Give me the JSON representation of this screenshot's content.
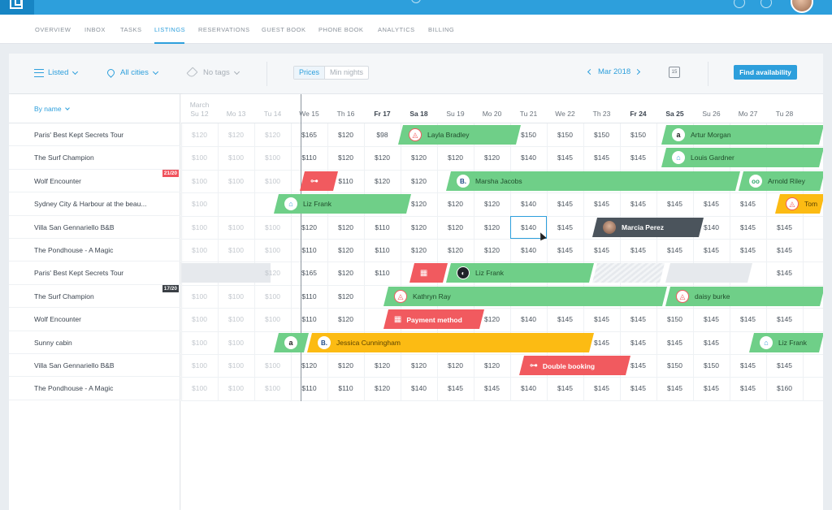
{
  "nav": {
    "tabs": [
      {
        "label": "OVERVIEW"
      },
      {
        "label": "INBOX"
      },
      {
        "label": "TASKS"
      },
      {
        "label": "LISTINGS"
      },
      {
        "label": "RESERVATIONS"
      },
      {
        "label": "GUEST BOOK"
      },
      {
        "label": "PHONE BOOK"
      },
      {
        "label": "ANALYTICS"
      },
      {
        "label": "BILLING"
      }
    ],
    "active": "LISTINGS"
  },
  "toolbar": {
    "listed": "Listed",
    "cities": "All cities",
    "tags": "No tags",
    "prices": "Prices",
    "min_nights": "Min nights",
    "month": "Mar 2018",
    "calendar_day": "15",
    "find": "Find availability"
  },
  "sort_label": "By name",
  "days": [
    {
      "label": "Su 12",
      "past": true,
      "month": "March"
    },
    {
      "label": "Mo 13",
      "past": true
    },
    {
      "label": "Tu 14",
      "past": true
    },
    {
      "label": "We 15"
    },
    {
      "label": "Th 16"
    },
    {
      "label": "Fr 17",
      "bold": true
    },
    {
      "label": "Sa 18",
      "bold": true
    },
    {
      "label": "Su 19"
    },
    {
      "label": "Mo 20"
    },
    {
      "label": "Tu 21"
    },
    {
      "label": "We 22"
    },
    {
      "label": "Th 23"
    },
    {
      "label": "Fr 24",
      "bold": true
    },
    {
      "label": "Sa 25",
      "bold": true
    },
    {
      "label": "Su 26"
    },
    {
      "label": "Mo 27"
    },
    {
      "label": "Tu 28"
    }
  ],
  "listings": [
    {
      "name": "Paris' Best Kept Secrets Tour",
      "prices": [
        "$120",
        "$120",
        "$120",
        "$165",
        "$120",
        "$98",
        "",
        "",
        "",
        "$150",
        "$150",
        "$150",
        "$150",
        "",
        "",
        "",
        ""
      ]
    },
    {
      "name": "The Surf Champion",
      "prices": [
        "$100",
        "$100",
        "$100",
        "$110",
        "$120",
        "$120",
        "$120",
        "$120",
        "$120",
        "$140",
        "$145",
        "$145",
        "$145",
        "",
        "",
        "",
        ""
      ]
    },
    {
      "name": "Wolf Encounter",
      "badge": "21/20",
      "badge_color": "red",
      "prices": [
        "$100",
        "$100",
        "$100",
        "",
        "$110",
        "$120",
        "$120",
        "",
        "",
        "",
        "",
        "",
        "",
        "",
        "",
        "",
        ""
      ]
    },
    {
      "name": "Sydney City & Harbour at the beau...",
      "prices": [
        "$100",
        "",
        "",
        "",
        "",
        "",
        "$120",
        "$120",
        "$120",
        "$140",
        "$145",
        "$145",
        "$145",
        "$145",
        "$145",
        "$145",
        ""
      ]
    },
    {
      "name": "Villa San Gennariello B&B",
      "prices": [
        "$100",
        "$100",
        "$100",
        "$120",
        "$120",
        "$110",
        "$120",
        "$120",
        "$120",
        "$140",
        "$145",
        "",
        "",
        "",
        "$140",
        "$145",
        "$145"
      ]
    },
    {
      "name": "The Pondhouse - A Magic",
      "prices": [
        "$100",
        "$100",
        "$100",
        "$110",
        "$120",
        "$110",
        "$120",
        "$120",
        "$120",
        "$140",
        "$145",
        "$145",
        "$145",
        "$145",
        "$145",
        "$145",
        "$145"
      ]
    },
    {
      "name": "Paris' Best Kept Secrets Tour",
      "prices": [
        "",
        "",
        "$120",
        "$165",
        "$120",
        "$110",
        "",
        "",
        "",
        "",
        "",
        "",
        "",
        "",
        "",
        "",
        "$145"
      ]
    },
    {
      "name": "The Surf Champion",
      "badge": "17/20",
      "badge_color": "dark",
      "prices": [
        "$100",
        "$100",
        "$100",
        "$110",
        "$120",
        "",
        "",
        "",
        "",
        "",
        "",
        "",
        "",
        "",
        "",
        "",
        ""
      ]
    },
    {
      "name": "Wolf Encounter",
      "prices": [
        "$100",
        "$100",
        "$100",
        "$110",
        "$120",
        "",
        "",
        "",
        "$120",
        "$140",
        "$145",
        "$145",
        "$145",
        "$150",
        "$145",
        "$145",
        "$145"
      ]
    },
    {
      "name": "Sunny cabin",
      "prices": [
        "$100",
        "$100",
        "",
        "",
        "",
        "",
        "",
        "",
        "",
        "",
        "",
        "$145",
        "$145",
        "$145",
        "$145",
        "",
        ""
      ]
    },
    {
      "name": "Villa San Gennariello B&B",
      "prices": [
        "$100",
        "$100",
        "$100",
        "$120",
        "$120",
        "$120",
        "$120",
        "$120",
        "$120",
        "",
        "",
        "",
        "$145",
        "$150",
        "$150",
        "$145",
        "$145"
      ]
    },
    {
      "name": "The Pondhouse - A Magic",
      "prices": [
        "$100",
        "$100",
        "$100",
        "$110",
        "$110",
        "$120",
        "$140",
        "$145",
        "$145",
        "$140",
        "$145",
        "$145",
        "$145",
        "$145",
        "$145",
        "$145",
        "$160"
      ]
    }
  ],
  "bookings": [
    {
      "row": 0,
      "start": 6,
      "end": 9.3,
      "color": "green",
      "icon": "airbnb",
      "guest": "Layla Bradley"
    },
    {
      "row": 0,
      "start": 13.2,
      "end": 17.6,
      "color": "green",
      "icon": "amazon",
      "guest": "Artur Morgan"
    },
    {
      "row": 1,
      "start": 13.2,
      "end": 17.6,
      "color": "green",
      "icon": "home",
      "guest": "Louis Gardner"
    },
    {
      "row": 2,
      "start": 3.3,
      "end": 4.3,
      "color": "red",
      "icon": "key",
      "guest": ""
    },
    {
      "row": 2,
      "start": 7.3,
      "end": 15.3,
      "color": "green",
      "icon": "letter-b",
      "guest": "Marsha Jacobs"
    },
    {
      "row": 2,
      "start": 15.3,
      "end": 17.6,
      "color": "green",
      "icon": "trip",
      "guest": "Arnold Riley"
    },
    {
      "row": 3,
      "start": 2.6,
      "end": 6.3,
      "color": "green",
      "icon": "home",
      "guest": "Liz Frank"
    },
    {
      "row": 3,
      "start": 16.3,
      "end": 17.6,
      "color": "yellow",
      "icon": "airbnb",
      "guest": "Tom"
    },
    {
      "row": 4,
      "start": 11.3,
      "end": 14.3,
      "color": "dark",
      "icon": "face",
      "guest": "Marcia Perez"
    },
    {
      "row": 6,
      "start": 6.3,
      "end": 7.3,
      "color": "red",
      "icon": "building",
      "guest": ""
    },
    {
      "row": 6,
      "start": 7.3,
      "end": 11.3,
      "color": "green",
      "icon": "dark-chip",
      "guest": "Liz Frank"
    },
    {
      "row": 7,
      "start": 5.6,
      "end": 13.3,
      "color": "green",
      "icon": "airbnb",
      "guest": "Kathryn Ray"
    },
    {
      "row": 7,
      "start": 13.3,
      "end": 17.6,
      "color": "green",
      "icon": "airbnb",
      "guest": "daisy burke"
    },
    {
      "row": 8,
      "start": 5.6,
      "end": 8.3,
      "color": "red",
      "icon": "building",
      "guest": "Payment method"
    },
    {
      "row": 9,
      "start": 2.6,
      "end": 3.5,
      "color": "green",
      "icon": "amazon",
      "guest": ""
    },
    {
      "row": 9,
      "start": 3.5,
      "end": 11.3,
      "color": "yellow",
      "icon": "booking",
      "guest": "Jessica Cunningham"
    },
    {
      "row": 9,
      "start": 15.6,
      "end": 17.6,
      "color": "green",
      "icon": "home",
      "guest": "Liz Frank"
    },
    {
      "row": 10,
      "start": 9.3,
      "end": 12.3,
      "color": "red",
      "icon": "key",
      "guest": "Double booking"
    }
  ]
}
